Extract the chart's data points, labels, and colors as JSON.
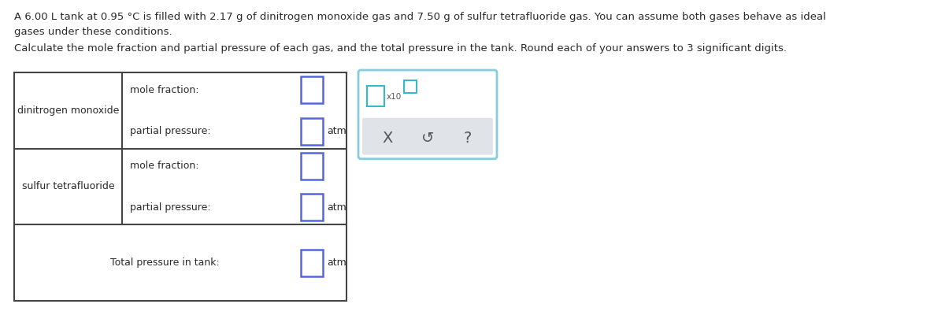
{
  "title_line1": "A 6.00 L tank at 0.95 °C is filled with 2.17 g of dinitrogen monoxide gas and 7.50 g of sulfur tetrafluoride gas. You can assume both gases behave as ideal",
  "title_line2": "gases under these conditions.",
  "subtitle": "Calculate the mole fraction and partial pressure of each gas, and the total pressure in the tank. Round each of your answers to 3 significant digits.",
  "row1_label": "dinitrogen monoxide",
  "row2_label": "sulfur tetrafluoride",
  "row3_label": "Total pressure in tank:",
  "mole_fraction_label": "mole fraction:",
  "partial_pressure_label": "partial pressure:",
  "atm_label": "atm",
  "x10_label": "x10",
  "bg_color": "#ffffff",
  "text_color": "#2a2a2a",
  "table_border_color": "#444444",
  "input_box_color": "#5566dd",
  "popup_border_color": "#88ccdd",
  "popup_bg_color": "#ffffff",
  "popup_bottom_color": "#e0e4e8",
  "teal_color": "#33bbcc",
  "x_symbol": "X",
  "undo_symbol": "↺",
  "question_symbol": "?"
}
